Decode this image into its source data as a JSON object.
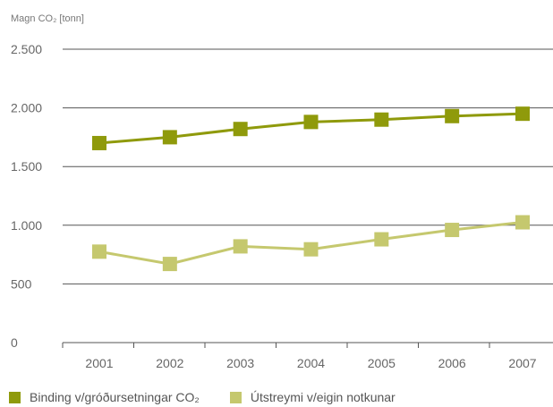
{
  "chart_data": {
    "type": "line",
    "ylabel": "Magn CO₂ [tonn]",
    "categories": [
      "2001",
      "2002",
      "2003",
      "2004",
      "2005",
      "2006",
      "2007"
    ],
    "ylim": [
      0,
      2500
    ],
    "yticks": [
      0,
      500,
      1000,
      1500,
      2000,
      2500
    ],
    "ytick_labels": [
      "0",
      "500",
      "1.000",
      "1.500",
      "2.000",
      "2.500"
    ],
    "grid": "horizontal",
    "legend_position": "bottom",
    "series": [
      {
        "name": "Binding v/gróðursetningar CO₂",
        "color": "#8f9a0b",
        "values": [
          1700,
          1750,
          1820,
          1880,
          1900,
          1930,
          1950
        ]
      },
      {
        "name": "Útstreymi v/eigin notkunar",
        "color": "#c5c86e",
        "values": [
          775,
          670,
          820,
          795,
          880,
          960,
          1025
        ]
      }
    ]
  }
}
